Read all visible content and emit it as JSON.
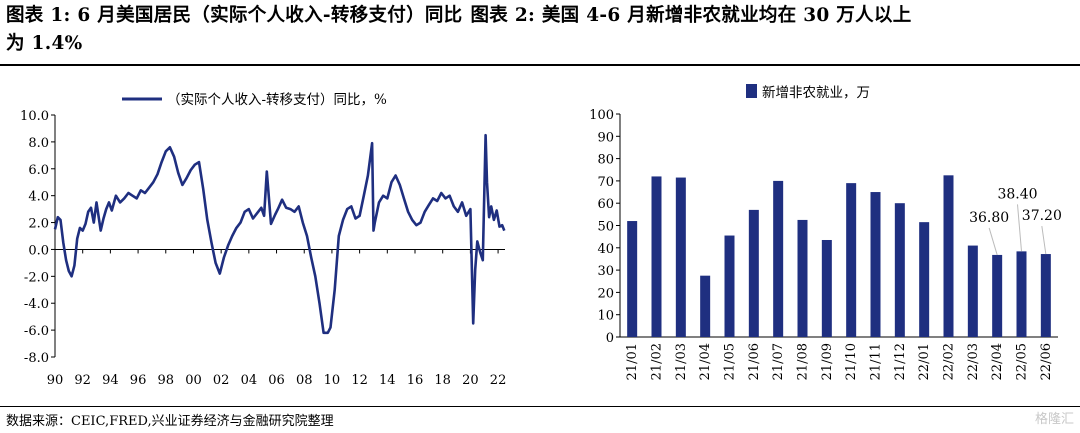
{
  "header": {
    "chart1_caption": "图表 1: 6 月美国居民（实际个人收入-转移支付）同比",
    "chart2_caption": "图表 2: 美国 4-6 月新增非农就业均在 30 万人以上",
    "chart1_caption_cont": "为 1.4%"
  },
  "footer": {
    "source": "数据来源：CEIC,FRED,兴业证券经济与金融研究院整理",
    "watermark": "格隆汇"
  },
  "chart_data": [
    {
      "type": "line",
      "title": "",
      "legend": "（实际个人收入-转移支付）同比，%",
      "legend_position": "top",
      "color": "#1f2f80",
      "x_ticks": [
        "90",
        "92",
        "94",
        "96",
        "98",
        "00",
        "02",
        "04",
        "06",
        "08",
        "10",
        "12",
        "14",
        "16",
        "18",
        "20",
        "22"
      ],
      "y_ticks": [
        "10.0",
        "8.0",
        "6.0",
        "4.0",
        "2.0",
        "0.0",
        "-2.0",
        "-4.0",
        "-6.0",
        "-8.0"
      ],
      "xlim": [
        1990,
        2022.5
      ],
      "ylim": [
        -8,
        10
      ],
      "grid": false,
      "series": [
        {
          "name": "（实际个人收入-转移支付）同比，%",
          "x": [
            1990.0,
            1990.2,
            1990.4,
            1990.6,
            1990.8,
            1991.0,
            1991.2,
            1991.4,
            1991.6,
            1991.8,
            1992.0,
            1992.2,
            1992.4,
            1992.6,
            1992.8,
            1993.0,
            1993.1,
            1993.3,
            1993.5,
            1993.7,
            1993.9,
            1994.1,
            1994.4,
            1994.7,
            1995.0,
            1995.3,
            1995.6,
            1995.9,
            1996.2,
            1996.5,
            1996.8,
            1997.1,
            1997.4,
            1997.7,
            1998.0,
            1998.3,
            1998.6,
            1998.9,
            1999.2,
            1999.5,
            1999.8,
            2000.1,
            2000.4,
            2000.7,
            2001.0,
            2001.3,
            2001.6,
            2001.9,
            2002.2,
            2002.5,
            2002.8,
            2003.1,
            2003.4,
            2003.7,
            2004.0,
            2004.3,
            2004.6,
            2004.9,
            2005.1,
            2005.3,
            2005.6,
            2005.9,
            2006.1,
            2006.4,
            2006.7,
            2007.0,
            2007.3,
            2007.6,
            2007.9,
            2008.2,
            2008.5,
            2008.8,
            2009.1,
            2009.4,
            2009.7,
            2009.9,
            2010.2,
            2010.5,
            2010.8,
            2011.1,
            2011.4,
            2011.7,
            2012.0,
            2012.3,
            2012.6,
            2012.9,
            2013.0,
            2013.1,
            2013.4,
            2013.7,
            2014.0,
            2014.3,
            2014.6,
            2014.9,
            2015.2,
            2015.5,
            2015.8,
            2016.1,
            2016.4,
            2016.7,
            2017.0,
            2017.3,
            2017.6,
            2017.9,
            2018.2,
            2018.5,
            2018.8,
            2019.1,
            2019.4,
            2019.7,
            2020.0,
            2020.2,
            2020.35,
            2020.5,
            2020.7,
            2020.9,
            2021.1,
            2021.2,
            2021.35,
            2021.5,
            2021.7,
            2021.9,
            2022.1,
            2022.3,
            2022.45
          ],
          "y": [
            1.5,
            2.4,
            2.2,
            0.5,
            -0.8,
            -1.6,
            -2.0,
            -1.2,
            0.8,
            1.6,
            1.4,
            1.9,
            2.8,
            3.1,
            2.0,
            3.5,
            2.8,
            1.4,
            2.3,
            3.0,
            3.5,
            2.9,
            4.0,
            3.5,
            3.8,
            4.2,
            4.0,
            3.8,
            4.4,
            4.2,
            4.6,
            5.0,
            5.6,
            6.5,
            7.3,
            7.6,
            6.9,
            5.7,
            4.8,
            5.3,
            5.9,
            6.3,
            6.5,
            4.5,
            2.2,
            0.5,
            -1.0,
            -1.8,
            -0.6,
            0.3,
            1.0,
            1.6,
            2.0,
            2.8,
            3.0,
            2.3,
            2.7,
            3.1,
            2.5,
            5.8,
            1.9,
            2.6,
            3.0,
            3.7,
            3.1,
            3.0,
            2.8,
            3.2,
            2.0,
            1.0,
            -0.6,
            -2.0,
            -4.0,
            -6.2,
            -6.2,
            -5.8,
            -3.0,
            1.0,
            2.2,
            3.0,
            3.2,
            2.3,
            2.5,
            4.0,
            5.5,
            7.9,
            1.4,
            2.0,
            3.5,
            4.0,
            3.8,
            5.0,
            5.5,
            4.8,
            3.8,
            2.8,
            2.2,
            1.8,
            2.0,
            2.8,
            3.3,
            3.8,
            3.6,
            4.2,
            3.8,
            4.0,
            3.2,
            2.8,
            3.5,
            2.5,
            3.0,
            -5.5,
            -1.5,
            0.6,
            -0.2,
            -0.8,
            8.5,
            5.0,
            2.4,
            3.2,
            2.2,
            2.9,
            1.7,
            1.8,
            1.4
          ]
        }
      ]
    },
    {
      "type": "bar",
      "title": "",
      "legend": "新增非农就业，万",
      "legend_position": "top",
      "color": "#1f2f80",
      "categories": [
        "21/01",
        "21/02",
        "21/03",
        "21/04",
        "21/05",
        "21/06",
        "21/07",
        "21/08",
        "21/09",
        "21/10",
        "21/11",
        "21/12",
        "22/01",
        "22/02",
        "22/03",
        "22/04",
        "22/05",
        "22/06"
      ],
      "values": [
        52.0,
        72.0,
        71.5,
        27.5,
        45.5,
        57.0,
        70.0,
        52.5,
        43.5,
        69.0,
        65.0,
        60.0,
        51.5,
        72.5,
        41.0,
        36.8,
        38.4,
        37.2
      ],
      "annotations": [
        {
          "category": "22/04",
          "label": "36.80"
        },
        {
          "category": "22/05",
          "label": "38.40"
        },
        {
          "category": "22/06",
          "label": "37.20"
        }
      ],
      "y_ticks": [
        "100",
        "90",
        "80",
        "70",
        "60",
        "50",
        "40",
        "30",
        "20",
        "10",
        "0"
      ],
      "ylim": [
        0,
        100
      ],
      "grid": false
    }
  ]
}
